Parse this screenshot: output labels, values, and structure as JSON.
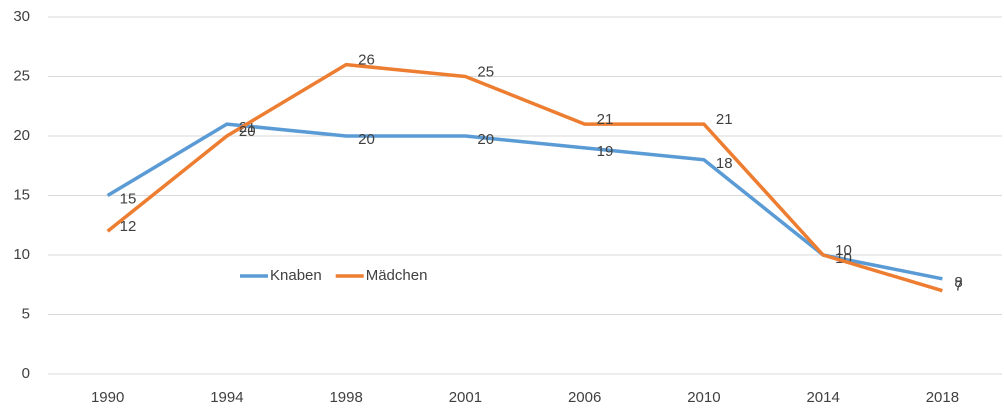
{
  "chart_data": {
    "type": "line",
    "categories": [
      "1990",
      "1994",
      "1998",
      "2001",
      "2006",
      "2010",
      "2014",
      "2018"
    ],
    "series": [
      {
        "name": "Knaben",
        "color": "#5b9bd5",
        "values": [
          15,
          21,
          20,
          20,
          19,
          18,
          10,
          8
        ]
      },
      {
        "name": "Mädchen",
        "color": "#ed7d31",
        "values": [
          12,
          20,
          26,
          25,
          21,
          21,
          10,
          7
        ]
      }
    ],
    "ylim": [
      0,
      30
    ],
    "yticks": [
      0,
      5,
      10,
      15,
      20,
      25,
      30
    ],
    "grid": true,
    "legend": "inside"
  }
}
